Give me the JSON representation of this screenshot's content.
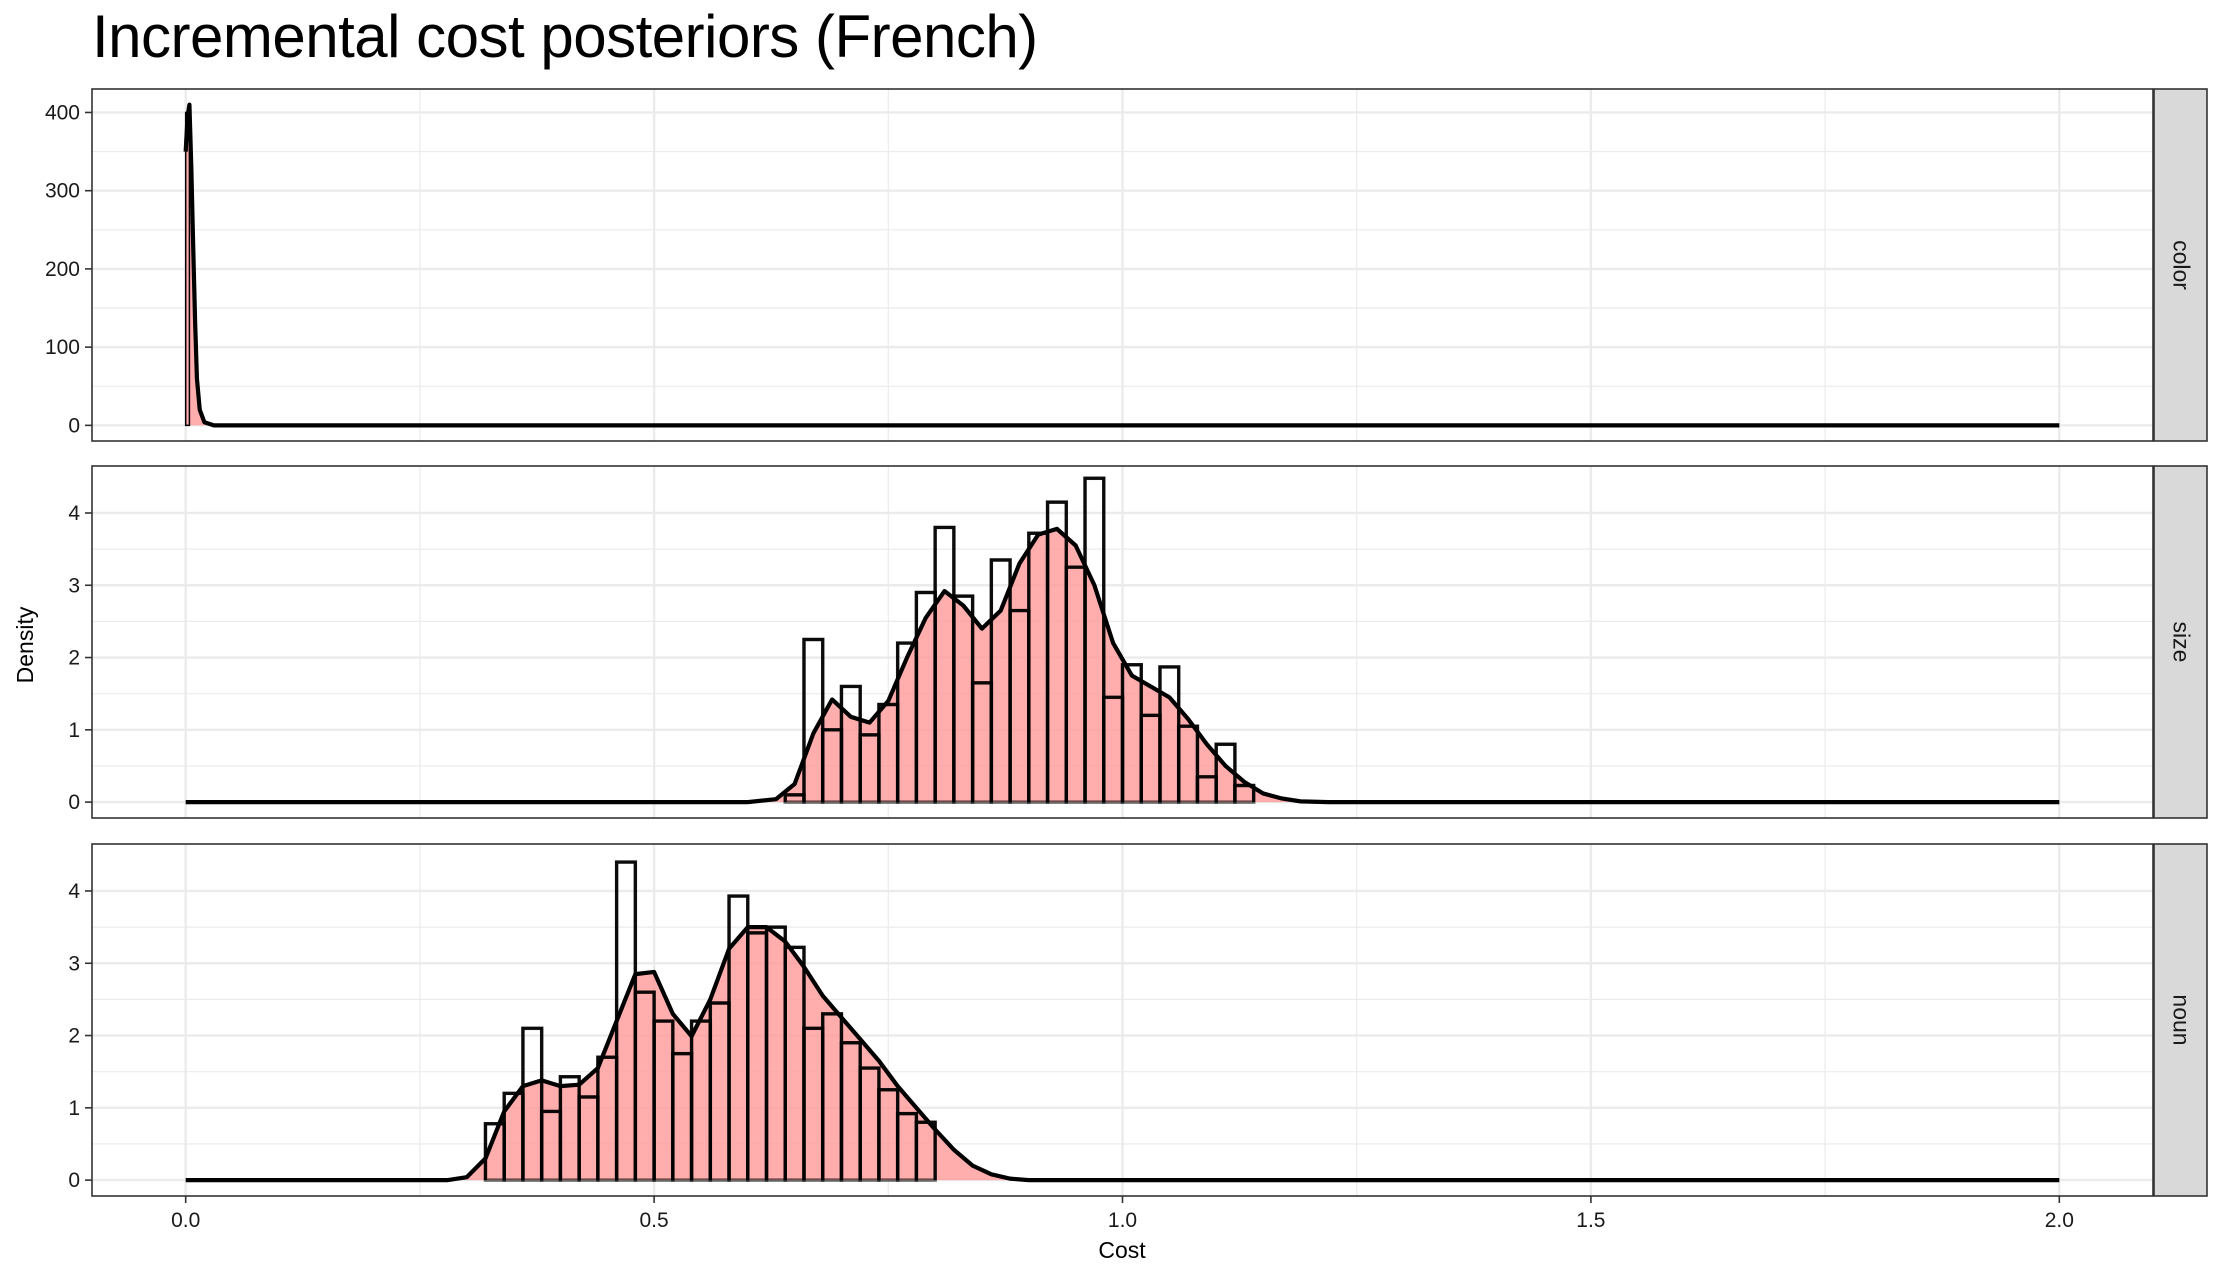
{
  "chart_data": {
    "type": "histogram-density-facets",
    "title": "Incremental cost posteriors (French)",
    "xlabel": "Cost",
    "ylabel": "Density",
    "xlim": [
      -0.1,
      2.1
    ],
    "x_ticks": [
      0.0,
      0.5,
      1.0,
      1.5,
      2.0
    ],
    "x_tick_labels": [
      "0.0",
      "0.5",
      "1.0",
      "1.5",
      "2.0"
    ],
    "grid": true,
    "bin_width": 0.02,
    "colors": {
      "fill": "#ff9999",
      "outline": "#000000",
      "density_line": "#000000",
      "strip_fill": "#d9d9d9",
      "grid": "#ebebeb"
    },
    "facets": [
      {
        "strip_label": "color",
        "ylim": [
          -20,
          430
        ],
        "y_ticks": [
          0,
          100,
          200,
          300,
          400
        ],
        "histogram": {
          "x_start": [
            0.0
          ],
          "values": [
            400
          ]
        },
        "density": {
          "x": [
            0.0,
            0.002,
            0.004,
            0.006,
            0.008,
            0.01,
            0.012,
            0.015,
            0.02,
            0.03,
            0.05,
            0.1,
            0.5,
            1.0,
            1.5,
            2.0
          ],
          "y": [
            350,
            395,
            410,
            330,
            230,
            135,
            60,
            20,
            4,
            0,
            0,
            0,
            0,
            0,
            0,
            0
          ]
        }
      },
      {
        "strip_label": "size",
        "ylim": [
          -0.22,
          4.65
        ],
        "y_ticks": [
          0,
          1,
          2,
          3,
          4
        ],
        "histogram": {
          "x_start": 0.64,
          "values": [
            0.1,
            2.25,
            1.0,
            1.6,
            0.93,
            1.35,
            2.2,
            2.9,
            3.8,
            2.85,
            1.65,
            3.35,
            2.65,
            3.72,
            4.15,
            3.25,
            4.48,
            1.45,
            1.9,
            1.2,
            1.87,
            1.05,
            0.35,
            0.8,
            0.23
          ]
        },
        "density": {
          "x": [
            0.0,
            0.6,
            0.63,
            0.65,
            0.67,
            0.69,
            0.71,
            0.73,
            0.75,
            0.77,
            0.79,
            0.81,
            0.83,
            0.85,
            0.87,
            0.89,
            0.91,
            0.93,
            0.95,
            0.97,
            0.99,
            1.01,
            1.03,
            1.05,
            1.07,
            1.09,
            1.11,
            1.13,
            1.15,
            1.17,
            1.19,
            1.22,
            2.0
          ],
          "y": [
            0,
            0,
            0.04,
            0.25,
            0.95,
            1.42,
            1.18,
            1.1,
            1.4,
            2.0,
            2.55,
            2.92,
            2.72,
            2.4,
            2.65,
            3.3,
            3.7,
            3.78,
            3.55,
            3.0,
            2.2,
            1.75,
            1.6,
            1.45,
            1.15,
            0.8,
            0.5,
            0.28,
            0.12,
            0.05,
            0.01,
            0,
            0
          ]
        }
      },
      {
        "strip_label": "noun",
        "ylim": [
          -0.22,
          4.65
        ],
        "y_ticks": [
          0,
          1,
          2,
          3,
          4
        ],
        "histogram": {
          "x_start": 0.32,
          "values": [
            0.78,
            1.2,
            2.1,
            0.95,
            1.43,
            1.15,
            1.7,
            4.4,
            2.6,
            2.2,
            1.75,
            2.2,
            2.45,
            3.93,
            3.42,
            3.5,
            3.22,
            2.1,
            2.3,
            1.9,
            1.55,
            1.25,
            0.92,
            0.8
          ]
        },
        "density": {
          "x": [
            0.0,
            0.28,
            0.3,
            0.32,
            0.34,
            0.36,
            0.38,
            0.4,
            0.42,
            0.44,
            0.46,
            0.48,
            0.5,
            0.52,
            0.54,
            0.56,
            0.58,
            0.6,
            0.62,
            0.64,
            0.66,
            0.68,
            0.7,
            0.72,
            0.74,
            0.76,
            0.78,
            0.8,
            0.82,
            0.84,
            0.86,
            0.88,
            0.9,
            2.0
          ],
          "y": [
            0,
            0,
            0.04,
            0.3,
            0.95,
            1.3,
            1.38,
            1.3,
            1.32,
            1.55,
            2.2,
            2.85,
            2.88,
            2.3,
            1.99,
            2.5,
            3.2,
            3.5,
            3.5,
            3.3,
            2.95,
            2.55,
            2.25,
            1.95,
            1.65,
            1.3,
            1.0,
            0.7,
            0.42,
            0.2,
            0.08,
            0.02,
            0,
            0
          ]
        }
      }
    ]
  }
}
